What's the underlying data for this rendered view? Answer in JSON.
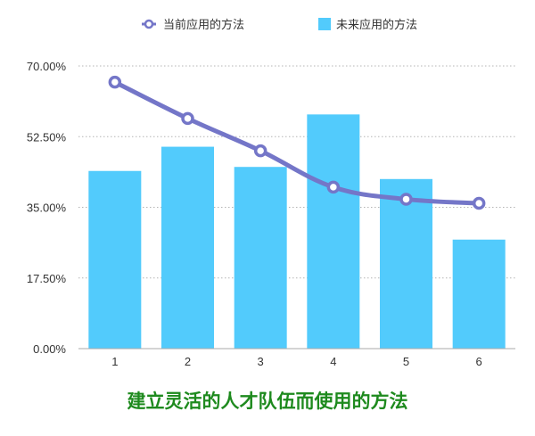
{
  "chart_data": {
    "type": "bar",
    "title": "",
    "xlabel": "",
    "ylabel": "",
    "categories": [
      "1",
      "2",
      "3",
      "4",
      "5",
      "6"
    ],
    "series": [
      {
        "name": "当前应用的方法",
        "kind": "line",
        "color": "#7476c8",
        "values": [
          66.0,
          57.0,
          49.0,
          40.0,
          37.0,
          36.0
        ]
      },
      {
        "name": "未来应用的方法",
        "kind": "bar",
        "color": "#52cbfc",
        "values": [
          44.0,
          50.0,
          45.0,
          58.0,
          42.0,
          27.0
        ]
      }
    ],
    "ylim": [
      0,
      70
    ],
    "yticks": [
      "0.00%",
      "17.50%",
      "35.00%",
      "52.50%",
      "70.00%"
    ],
    "ytick_values": [
      0,
      17.5,
      35,
      52.5,
      70
    ],
    "grid": true,
    "legend": "top-center"
  },
  "caption": "建立灵活的人才队伍而使用的方法"
}
